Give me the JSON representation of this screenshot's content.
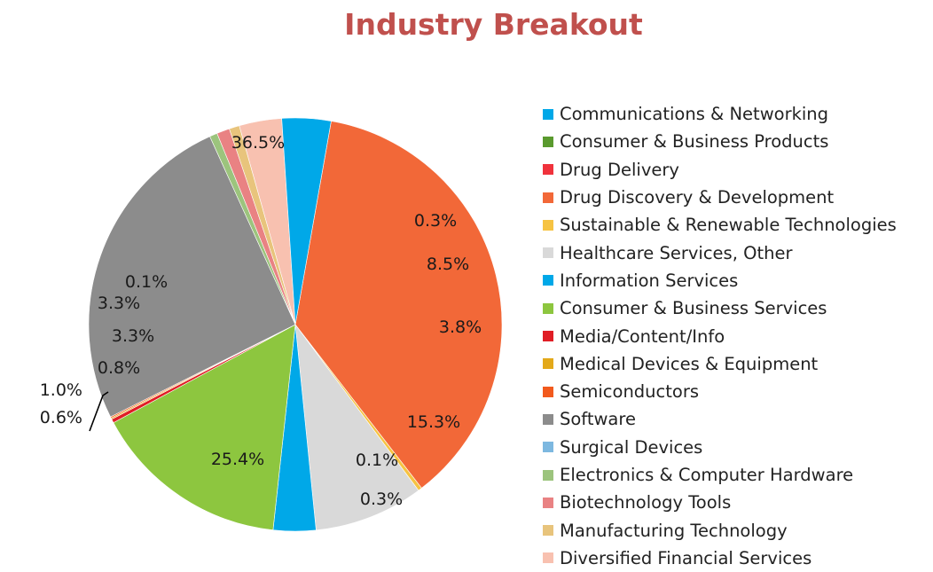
{
  "chart_data": {
    "type": "pie",
    "title": "Industry Breakout",
    "legend_position": "right",
    "slices": [
      {
        "name": "Communications & Networking",
        "value": 3.8,
        "label": "3.8%",
        "color": "#00a8e8"
      },
      {
        "name": "Consumer & Business Products",
        "value": 0.0,
        "label": "",
        "color": "#5a9a2e"
      },
      {
        "name": "Drug Delivery",
        "value": 0.0,
        "label": "",
        "color": "#f0323c"
      },
      {
        "name": "Drug Discovery & Development",
        "value": 36.5,
        "label": "36.5%",
        "color": "#f26838"
      },
      {
        "name": "Sustainable & Renewable Technologies",
        "value": 0.3,
        "label": "0.3%",
        "color": "#f6c342"
      },
      {
        "name": "Healthcare Services, Other",
        "value": 8.5,
        "label": "8.5%",
        "color": "#d9d9d9"
      },
      {
        "name": "Information Services",
        "value": 3.3,
        "label": "3.3%",
        "color": "#00a8e8"
      },
      {
        "name": "Consumer & Business Services",
        "value": 15.3,
        "label": "15.3%",
        "color": "#8dc63f"
      },
      {
        "name": "Media/Content/Info",
        "value": 0.3,
        "label": "0.3%",
        "color": "#e01e25"
      },
      {
        "name": "Medical Devices & Equipment",
        "value": 0.1,
        "label": "0.1%",
        "color": "#e3a91a"
      },
      {
        "name": "Semiconductors",
        "value": 0.1,
        "label": "0.1%",
        "color": "#f25a1d"
      },
      {
        "name": "Software",
        "value": 25.4,
        "label": "25.4%",
        "color": "#8c8c8c"
      },
      {
        "name": "Surgical Devices",
        "value": 0.0,
        "label": "",
        "color": "#7db8e0"
      },
      {
        "name": "Electronics & Computer Hardware",
        "value": 0.6,
        "label": "0.6%",
        "color": "#9cc47d"
      },
      {
        "name": "Biotechnology Tools",
        "value": 1.0,
        "label": "1.0%",
        "color": "#e98283"
      },
      {
        "name": "Manufacturing Technology",
        "value": 0.8,
        "label": "0.8%",
        "color": "#e8c47c"
      },
      {
        "name": "Diversified Financial Services",
        "value": 3.3,
        "label": "3.3%",
        "color": "#f8c1b0"
      }
    ]
  }
}
